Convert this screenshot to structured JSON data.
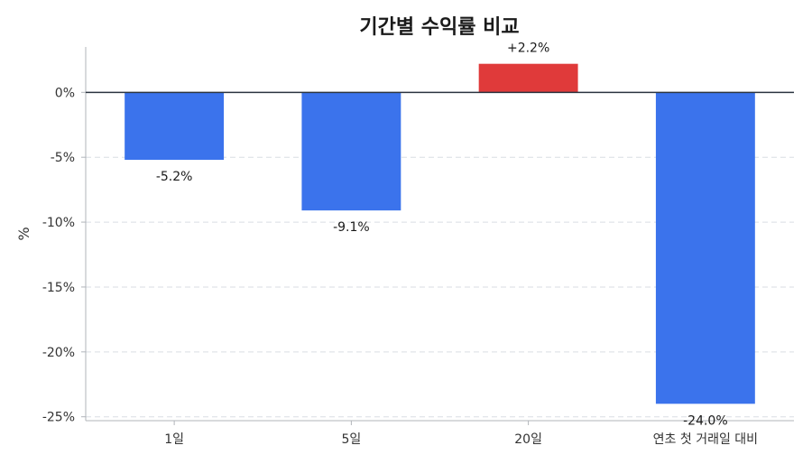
{
  "chart_data": {
    "type": "bar",
    "title": "기간별 수익률 비교",
    "xlabel": "",
    "ylabel": "%",
    "categories": [
      "1일",
      "5일",
      "20일",
      "연초 첫 거래일 대비"
    ],
    "values": [
      -5.2,
      -9.1,
      2.2,
      -24.0
    ],
    "data_labels": [
      "-5.2%",
      "-9.1%",
      "+2.2%",
      "-24.0%"
    ],
    "ylim": [
      -25.3,
      3.5
    ],
    "yticks": [
      0,
      -5,
      -10,
      -15,
      -20,
      -25
    ],
    "ytick_labels": [
      "0%",
      "-5%",
      "-10%",
      "-15%",
      "-20%",
      "-25%"
    ],
    "grid": true,
    "legend": "none",
    "colors": {
      "negative": "#3b73ec",
      "positive": "#e03a3a"
    }
  }
}
